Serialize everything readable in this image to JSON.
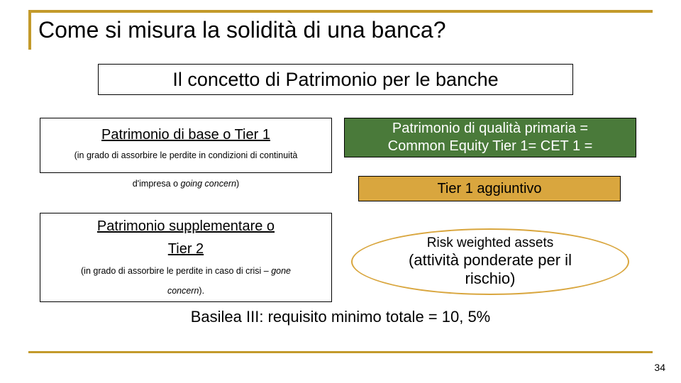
{
  "colors": {
    "accent": "#c39a2b",
    "hr": "#c39a2b",
    "cet1_bg": "#4a7a3a",
    "agg_bg": "#d9a63e",
    "rwa_border": "#d9a63e"
  },
  "title": "Come si misura la solidità di una banca?",
  "subtitle": "Il concetto di Patrimonio per le banche",
  "tier1": {
    "heading": "Patrimonio di base o Tier 1",
    "note": "(in grado di assorbire le perdite in condizioni di continuità",
    "going": "d'impresa o ",
    "going_it": "going concern",
    "going_close": ")"
  },
  "tier2": {
    "heading_l1": "Patrimonio supplementare o",
    "heading_l2": "Tier 2",
    "note_pre": "(in grado di assorbire le perdite in caso di crisi – ",
    "note_it": "gone",
    "note_l2_it": "concern",
    "note_close": ")."
  },
  "cet1": {
    "l1": "Patrimonio di qualità primaria =",
    "l2": "Common Equity Tier 1= CET 1 ="
  },
  "agg": "Tier 1 aggiuntivo",
  "rwa": {
    "title": "Risk weighted assets",
    "sub_l1": "(attività ponderate per il",
    "sub_l2": "rischio)"
  },
  "footer": "Basilea III: requisito minimo totale = 10, 5%",
  "page": "34"
}
